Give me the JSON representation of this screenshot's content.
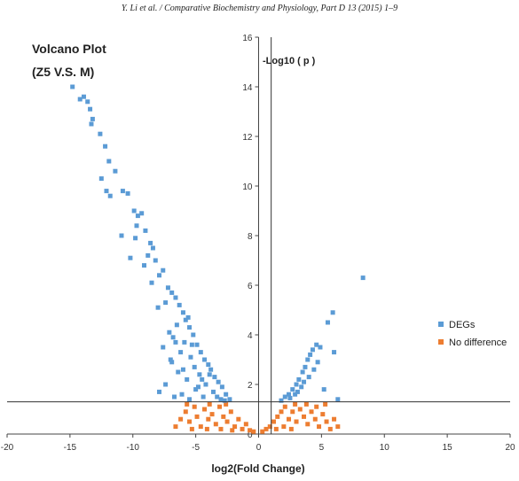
{
  "header": {
    "running_head": "Y. Li et al. / Comparative Biochemistry and Physiology, Part D 13 (2015) 1–9"
  },
  "chart_data": {
    "type": "scatter",
    "title": "Volcano Plot",
    "subtitle": "(Z5 V.S. M)",
    "xlabel": "log2(Fold Change)",
    "ylabel": "-Log10 ( p )",
    "xlim": [
      -20,
      20
    ],
    "ylim": [
      0,
      16
    ],
    "x_ticks": [
      -20,
      -15,
      -10,
      -5,
      0,
      5,
      10,
      15,
      20
    ],
    "y_ticks": [
      0,
      2,
      4,
      6,
      8,
      10,
      12,
      14,
      16
    ],
    "threshold_y": 1.3,
    "threshold_x": 1,
    "grid": false,
    "legend_position": "right",
    "colors": {
      "degs": "#5b9bd5",
      "no_difference": "#ed7d31"
    },
    "series": [
      {
        "name": "DEGs",
        "points": [
          [
            -14.8,
            14.0
          ],
          [
            -14.2,
            13.5
          ],
          [
            -13.9,
            13.6
          ],
          [
            -13.6,
            13.4
          ],
          [
            -13.4,
            13.1
          ],
          [
            -13.2,
            12.7
          ],
          [
            -13.3,
            12.5
          ],
          [
            -12.6,
            12.1
          ],
          [
            -12.2,
            11.6
          ],
          [
            -11.9,
            11.0
          ],
          [
            -11.4,
            10.6
          ],
          [
            -12.5,
            10.3
          ],
          [
            -12.1,
            9.8
          ],
          [
            -11.8,
            9.6
          ],
          [
            -10.8,
            9.8
          ],
          [
            -10.4,
            9.7
          ],
          [
            -9.9,
            9.0
          ],
          [
            -9.6,
            8.8
          ],
          [
            -9.3,
            8.9
          ],
          [
            -9.7,
            8.4
          ],
          [
            -9.0,
            8.2
          ],
          [
            -10.9,
            8.0
          ],
          [
            -9.8,
            7.9
          ],
          [
            -8.6,
            7.7
          ],
          [
            -8.4,
            7.5
          ],
          [
            -8.8,
            7.2
          ],
          [
            -10.2,
            7.1
          ],
          [
            -8.2,
            7.0
          ],
          [
            -9.1,
            6.8
          ],
          [
            -7.6,
            6.6
          ],
          [
            -7.9,
            6.4
          ],
          [
            -8.5,
            6.1
          ],
          [
            -7.2,
            5.9
          ],
          [
            -6.9,
            5.7
          ],
          [
            -6.6,
            5.5
          ],
          [
            -7.4,
            5.3
          ],
          [
            -6.3,
            5.2
          ],
          [
            -8.0,
            5.1
          ],
          [
            -6.0,
            4.9
          ],
          [
            -5.8,
            4.6
          ],
          [
            -6.5,
            4.4
          ],
          [
            -5.5,
            4.3
          ],
          [
            -7.1,
            4.1
          ],
          [
            -5.2,
            4.0
          ],
          [
            -6.8,
            3.9
          ],
          [
            -5.9,
            3.7
          ],
          [
            -4.9,
            3.6
          ],
          [
            -7.6,
            3.5
          ],
          [
            -6.2,
            3.3
          ],
          [
            -4.6,
            3.3
          ],
          [
            -5.4,
            3.1
          ],
          [
            -4.3,
            3.0
          ],
          [
            -6.9,
            2.9
          ],
          [
            -4.0,
            2.8
          ],
          [
            -5.1,
            2.7
          ],
          [
            -3.8,
            2.6
          ],
          [
            -6.4,
            2.5
          ],
          [
            -4.7,
            2.4
          ],
          [
            -3.5,
            2.3
          ],
          [
            -5.7,
            2.2
          ],
          [
            -3.2,
            2.1
          ],
          [
            -4.2,
            2.0
          ],
          [
            -7.4,
            2.0
          ],
          [
            -2.9,
            1.9
          ],
          [
            -5.0,
            1.8
          ],
          [
            -3.6,
            1.7
          ],
          [
            -2.6,
            1.6
          ],
          [
            -6.1,
            1.6
          ],
          [
            -4.4,
            1.5
          ],
          [
            -2.3,
            1.4
          ],
          [
            -3.0,
            1.4
          ],
          [
            -5.5,
            1.4
          ],
          [
            -7.9,
            1.7
          ],
          [
            -6.7,
            1.5
          ],
          [
            -4.8,
            1.9
          ],
          [
            -3.3,
            1.5
          ],
          [
            -2.7,
            1.35
          ],
          [
            -7.0,
            3.0
          ],
          [
            -5.3,
            3.6
          ],
          [
            -6.0,
            2.6
          ],
          [
            -4.5,
            2.2
          ],
          [
            -5.6,
            4.7
          ],
          [
            -6.6,
            3.7
          ],
          [
            -3.9,
            2.4
          ],
          [
            1.8,
            1.35
          ],
          [
            2.1,
            1.5
          ],
          [
            2.4,
            1.6
          ],
          [
            2.7,
            1.8
          ],
          [
            3.0,
            2.0
          ],
          [
            3.2,
            2.2
          ],
          [
            3.5,
            2.5
          ],
          [
            3.7,
            2.7
          ],
          [
            3.9,
            3.0
          ],
          [
            4.1,
            3.2
          ],
          [
            4.3,
            3.4
          ],
          [
            4.6,
            3.6
          ],
          [
            4.9,
            3.5
          ],
          [
            3.4,
            1.9
          ],
          [
            2.9,
            1.6
          ],
          [
            4.0,
            2.3
          ],
          [
            4.4,
            2.6
          ],
          [
            3.6,
            2.1
          ],
          [
            2.5,
            1.45
          ],
          [
            5.5,
            4.5
          ],
          [
            5.9,
            4.9
          ],
          [
            6.0,
            3.3
          ],
          [
            6.3,
            1.4
          ],
          [
            8.3,
            6.3
          ],
          [
            5.2,
            1.8
          ],
          [
            4.7,
            2.9
          ],
          [
            3.1,
            1.7
          ]
        ]
      },
      {
        "name": "No difference",
        "points": [
          [
            -6.2,
            0.6
          ],
          [
            -5.8,
            0.9
          ],
          [
            -5.5,
            0.5
          ],
          [
            -5.1,
            1.1
          ],
          [
            -4.9,
            0.7
          ],
          [
            -4.6,
            0.3
          ],
          [
            -4.3,
            1.0
          ],
          [
            -4.0,
            0.6
          ],
          [
            -3.7,
            0.8
          ],
          [
            -3.4,
            0.4
          ],
          [
            -3.1,
            1.1
          ],
          [
            -2.8,
            0.7
          ],
          [
            -2.5,
            0.5
          ],
          [
            -2.2,
            0.9
          ],
          [
            -1.9,
            0.3
          ],
          [
            -1.6,
            0.6
          ],
          [
            -1.3,
            0.2
          ],
          [
            -1.0,
            0.4
          ],
          [
            -0.7,
            0.15
          ],
          [
            -0.4,
            0.1
          ],
          [
            -6.6,
            0.3
          ],
          [
            -5.3,
            0.2
          ],
          [
            -4.1,
            0.2
          ],
          [
            -3.0,
            0.2
          ],
          [
            -2.1,
            0.15
          ],
          [
            -3.9,
            1.2
          ],
          [
            -2.6,
            1.2
          ],
          [
            -5.7,
            1.2
          ],
          [
            0.3,
            0.1
          ],
          [
            0.6,
            0.2
          ],
          [
            0.9,
            0.3
          ],
          [
            1.2,
            0.5
          ],
          [
            1.5,
            0.7
          ],
          [
            1.8,
            0.9
          ],
          [
            2.1,
            1.1
          ],
          [
            2.4,
            0.6
          ],
          [
            2.7,
            0.9
          ],
          [
            3.0,
            0.5
          ],
          [
            3.3,
            1.0
          ],
          [
            3.6,
            0.7
          ],
          [
            3.9,
            0.4
          ],
          [
            4.2,
            0.9
          ],
          [
            4.5,
            0.6
          ],
          [
            4.8,
            0.3
          ],
          [
            5.1,
            0.8
          ],
          [
            5.4,
            0.5
          ],
          [
            5.7,
            0.2
          ],
          [
            6.0,
            0.6
          ],
          [
            6.3,
            0.3
          ],
          [
            2.0,
            0.3
          ],
          [
            2.9,
            1.2
          ],
          [
            3.8,
            1.2
          ],
          [
            4.6,
            1.1
          ],
          [
            5.3,
            1.2
          ],
          [
            1.4,
            0.2
          ],
          [
            2.6,
            0.2
          ]
        ]
      }
    ]
  }
}
